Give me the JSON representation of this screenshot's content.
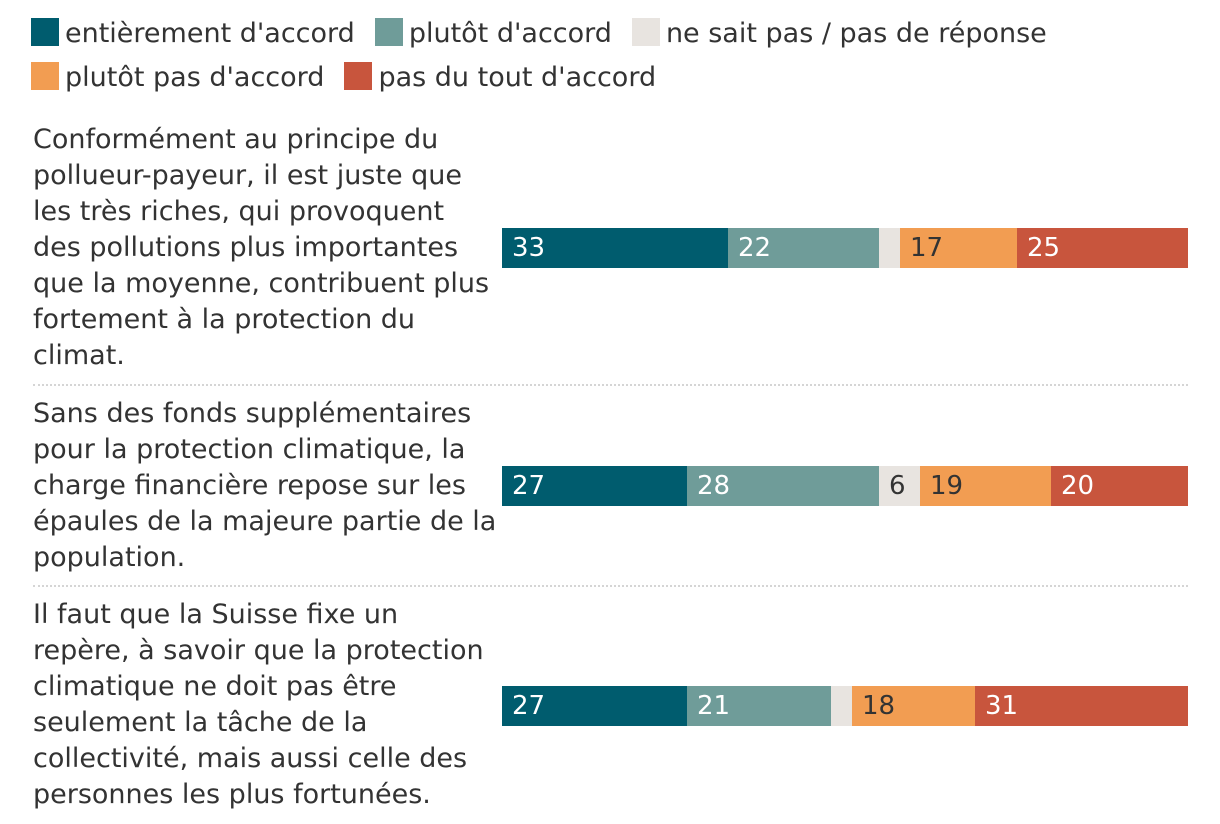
{
  "chart_data": {
    "type": "bar",
    "orientation": "horizontal",
    "stacked": true,
    "unit": "percent",
    "legend_position": "top",
    "legend": [
      {
        "key": "a",
        "label": "entièrement d'accord",
        "color": "#005c6e"
      },
      {
        "key": "b",
        "label": "plutôt d'accord",
        "color": "#6f9c99"
      },
      {
        "key": "c",
        "label": "ne sait pas / pas de réponse",
        "color": "#e8e4e0"
      },
      {
        "key": "d",
        "label": "plutôt pas d'accord",
        "color": "#f29d52"
      },
      {
        "key": "e",
        "label": "pas du tout d'accord",
        "color": "#c8553d"
      }
    ],
    "categories": [
      "Conformément au principe du pollueur-payeur, il est juste que les très riches, qui provoquent des pollutions plus importantes que la moyenne, contribuent plus fortement à la protection du climat.",
      "Sans des fonds supplémentaires pour la protection climatique, la charge financière repose sur les épaules de la majeure partie de la population.",
      "Il faut que la Suisse fixe un repère, à savoir que la protection climatique ne doit pas être seulement la tâche de la collectivité, mais aussi celle des personnes les plus fortunées."
    ],
    "series": [
      {
        "name": "entièrement d'accord",
        "values": [
          33,
          27,
          27
        ],
        "labels": [
          "33",
          "27",
          "27"
        ]
      },
      {
        "name": "plutôt d'accord",
        "values": [
          22,
          28,
          21
        ],
        "labels": [
          "22",
          "28",
          "21"
        ]
      },
      {
        "name": "ne sait pas / pas de réponse",
        "values": [
          3,
          6,
          3
        ],
        "labels": [
          "",
          "6",
          ""
        ]
      },
      {
        "name": "plutôt pas d'accord",
        "values": [
          17,
          19,
          18
        ],
        "labels": [
          "17",
          "19",
          "18"
        ]
      },
      {
        "name": "pas du tout d'accord",
        "values": [
          25,
          20,
          31
        ],
        "labels": [
          "25",
          "20",
          "31"
        ]
      }
    ],
    "xlim": [
      0,
      100
    ]
  }
}
